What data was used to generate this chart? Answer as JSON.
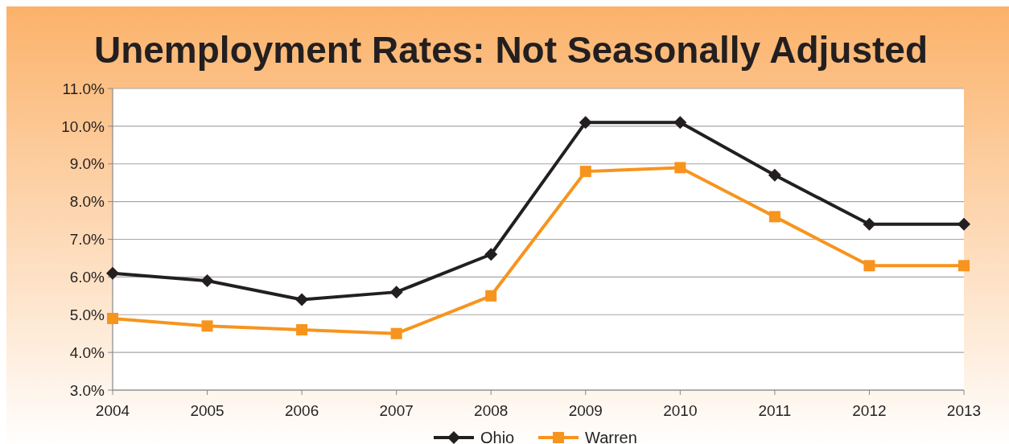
{
  "chart_data": {
    "type": "line",
    "title": "Unemployment Rates: Not Seasonally Adjusted",
    "x": [
      2004,
      2005,
      2006,
      2007,
      2008,
      2009,
      2010,
      2011,
      2012,
      2013
    ],
    "xlim": [
      2004,
      2013
    ],
    "xticks": [
      2004,
      2005,
      2006,
      2007,
      2008,
      2009,
      2010,
      2011,
      2012,
      2013
    ],
    "ylim": [
      3,
      11
    ],
    "yticks": [
      {
        "value": 3,
        "label": "3.0%"
      },
      {
        "value": 4,
        "label": "4.0%"
      },
      {
        "value": 5,
        "label": "5.0%"
      },
      {
        "value": 6,
        "label": "6.0%"
      },
      {
        "value": 7,
        "label": "7.0%"
      },
      {
        "value": 8,
        "label": "8.0%"
      },
      {
        "value": 9,
        "label": "9.0%"
      },
      {
        "value": 10,
        "label": "10.0%"
      },
      {
        "value": 11,
        "label": "11.0%"
      }
    ],
    "grid": "y",
    "legend": "bottom",
    "line_style": "solid",
    "series": [
      {
        "name": "Ohio",
        "color": "#231f20",
        "marker": "diamond",
        "values": [
          6.1,
          5.9,
          5.4,
          5.6,
          6.6,
          10.1,
          10.1,
          8.7,
          7.4,
          7.4
        ]
      },
      {
        "name": "Warren",
        "color": "#f7941d",
        "marker": "square",
        "values": [
          4.9,
          4.7,
          4.6,
          4.5,
          5.5,
          8.8,
          8.9,
          7.6,
          6.3,
          6.3
        ]
      }
    ]
  }
}
